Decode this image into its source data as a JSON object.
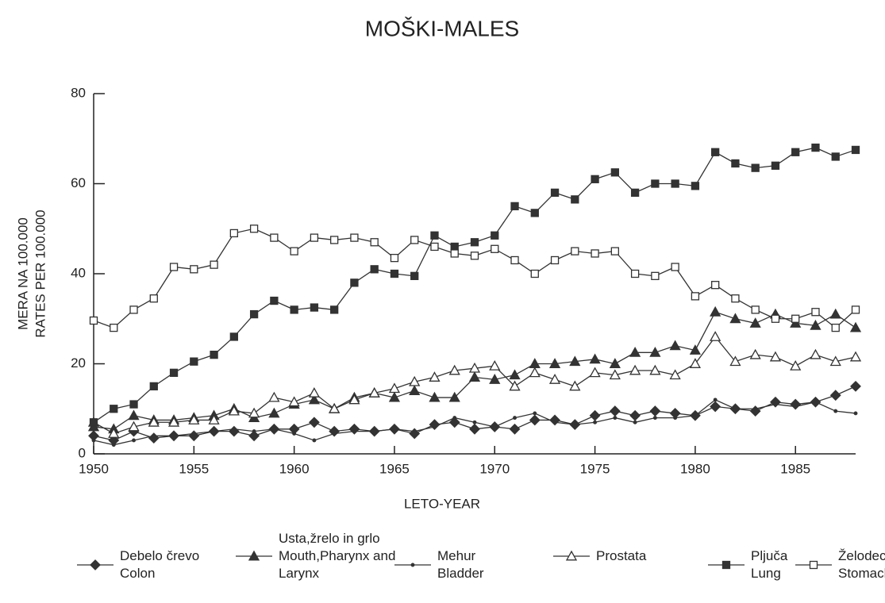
{
  "chart_data": {
    "type": "line",
    "title": "MOŠKI-MALES",
    "x_label": "LETO-YEAR",
    "y_label": [
      "MERA NA 100.000",
      "RATES PER 100.000"
    ],
    "x": [
      1950,
      1951,
      1952,
      1953,
      1954,
      1955,
      1956,
      1957,
      1958,
      1959,
      1960,
      1961,
      1962,
      1963,
      1964,
      1965,
      1966,
      1967,
      1968,
      1969,
      1970,
      1971,
      1972,
      1973,
      1974,
      1975,
      1976,
      1977,
      1978,
      1979,
      1980,
      1981,
      1982,
      1983,
      1984,
      1985,
      1986,
      1987,
      1988
    ],
    "xlim": [
      1950,
      1988
    ],
    "xticks": [
      1950,
      1955,
      1960,
      1965,
      1970,
      1975,
      1980,
      1985
    ],
    "ylim": [
      0,
      80
    ],
    "yticks": [
      0,
      20,
      40,
      60,
      80
    ],
    "series": [
      {
        "name": "Debelo črevo\nColon",
        "marker": "diamond",
        "color": "#333333",
        "values": [
          4,
          3,
          5,
          3.5,
          4,
          4,
          5,
          5,
          4,
          5.5,
          5.5,
          7,
          5,
          5.5,
          5,
          5.5,
          4.5,
          6.5,
          7,
          5.5,
          6,
          5.5,
          7.5,
          7.5,
          6.5,
          8.5,
          9.5,
          8.5,
          9.5,
          9,
          8.5,
          10.5,
          10,
          9.5,
          11.5,
          11,
          11.5,
          13,
          15
        ]
      },
      {
        "name": "Usta,žrelo in grlo\nMouth,Pharynx and\nLarynx",
        "marker": "triangle",
        "color": "#333333",
        "values": [
          6,
          5.5,
          8.5,
          7.5,
          7.5,
          8,
          8.5,
          10,
          8,
          9,
          11,
          12,
          10,
          12.5,
          13.5,
          12.5,
          14,
          12.5,
          12.5,
          17,
          16.5,
          17.5,
          20,
          20,
          20.5,
          21,
          20,
          22.5,
          22.5,
          24,
          23,
          31.5,
          30,
          29,
          31,
          29,
          28.5,
          31,
          28
        ]
      },
      {
        "name": "Mehur\nBladder",
        "marker": "dot",
        "color": "#333333",
        "values": [
          3,
          2,
          3,
          4,
          4,
          4.5,
          5,
          5.5,
          5,
          5.5,
          4.5,
          3,
          4.5,
          5,
          5,
          5.5,
          5,
          6,
          8,
          7,
          6,
          8,
          9,
          7,
          6.5,
          7,
          8,
          7,
          8,
          8,
          8.5,
          12,
          10,
          10,
          11,
          10.5,
          11.5,
          9.5,
          9
        ]
      },
      {
        "name": "Prostata",
        "marker": "open-triangle",
        "color": "#333333",
        "values": [
          7,
          4.5,
          6,
          7,
          7,
          7.5,
          7.5,
          9.5,
          9,
          12.5,
          11.5,
          13.5,
          10,
          12,
          13.5,
          14.5,
          16,
          17,
          18.5,
          19,
          19.5,
          15,
          18,
          16.5,
          15,
          18,
          17.5,
          18.5,
          18.5,
          17.5,
          20,
          26,
          20.5,
          22,
          21.5,
          19.5,
          22,
          20.5,
          21.5
        ]
      },
      {
        "name": "Pljuča\nLung",
        "marker": "square",
        "color": "#333333",
        "values": [
          7,
          10,
          11,
          15,
          18,
          20.5,
          22,
          26,
          31,
          34,
          32,
          32.5,
          32,
          38,
          41,
          40,
          39.5,
          48.5,
          46,
          47,
          48.5,
          55,
          53.5,
          58,
          56.5,
          61,
          62.5,
          58,
          60,
          60,
          59.5,
          67,
          64.5,
          63.5,
          64,
          67,
          68,
          66,
          67.5
        ]
      },
      {
        "name": "Želodec\nStomach",
        "marker": "open-square",
        "color": "#333333",
        "values": [
          29.6,
          28,
          32,
          34.5,
          41.5,
          41,
          42,
          49,
          50,
          48,
          45,
          48,
          47.5,
          48,
          47,
          43.5,
          47.5,
          46,
          44.5,
          44,
          45.5,
          43,
          40,
          43,
          45,
          44.5,
          45,
          40,
          39.5,
          41.5,
          35,
          37.5,
          34.5,
          32,
          30,
          30,
          31.5,
          28,
          32
        ]
      }
    ]
  }
}
